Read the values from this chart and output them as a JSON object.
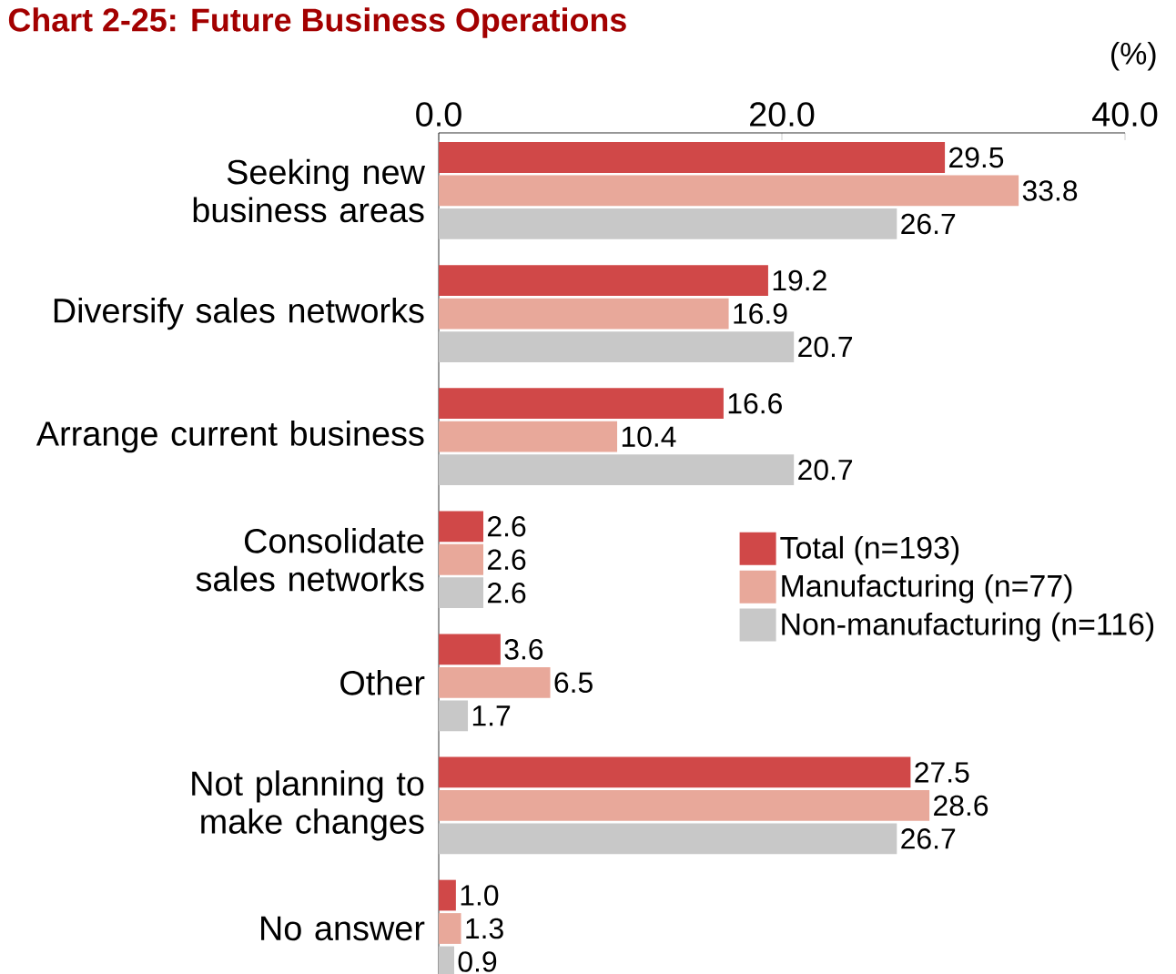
{
  "chart_data": {
    "type": "bar",
    "orientation": "horizontal",
    "title": "Chart 2-25: Future Business Operations",
    "xlabel": "(%)",
    "categories": [
      "Seeking new business areas",
      "Diversify sales networks",
      "Arrange current business",
      "Consolidate sales networks",
      "Other",
      "Not planning to make changes",
      "No answer"
    ],
    "series": [
      {
        "name": "Total (n=193)",
        "color": "#d04848",
        "values": [
          29.5,
          19.2,
          16.6,
          2.6,
          3.6,
          27.5,
          1.0
        ],
        "value_labels": [
          "29.5",
          "19.2",
          "16.6",
          "2.6",
          "3.6",
          "27.5",
          "1.0"
        ]
      },
      {
        "name": "Manufacturing (n=77)",
        "color": "#e8a89a",
        "values": [
          33.8,
          16.9,
          10.4,
          2.6,
          6.5,
          28.6,
          1.3
        ],
        "value_labels": [
          "33.8",
          "16.9",
          "10.4",
          "2.6",
          "6.5",
          "28.6",
          "1.3"
        ]
      },
      {
        "name": "Non-manufacturing (n=116)",
        "color": "#c8c8c8",
        "values": [
          26.7,
          20.7,
          20.7,
          2.6,
          1.7,
          26.7,
          0.9
        ],
        "value_labels": [
          "26.7",
          "20.7",
          "20.7",
          "2.6",
          "1.7",
          "26.7",
          "0.9"
        ]
      }
    ],
    "xlim": [
      0,
      40
    ],
    "xticks": [
      {
        "value": 0,
        "label": "0.0"
      },
      {
        "value": 20,
        "label": "20.0"
      },
      {
        "value": 40,
        "label": "40.0"
      }
    ],
    "legend": "right"
  }
}
